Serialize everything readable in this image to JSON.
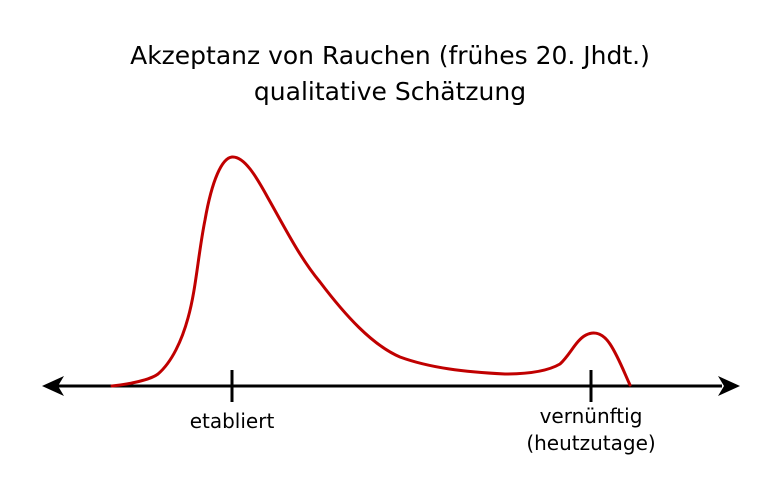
{
  "diagram": {
    "title_line1": "Akzeptanz von Rauchen (frühes 20. Jhdt.)",
    "title_line2": "qualitative Schätzung",
    "axis": {
      "tick_left_label": "etabliert",
      "tick_right_label_line1": "vernünftig",
      "tick_right_label_line2": "(heutzutage)"
    },
    "colors": {
      "curve": "#c00000",
      "axis": "#000000",
      "text": "#000000",
      "background": "#ffffff"
    }
  }
}
